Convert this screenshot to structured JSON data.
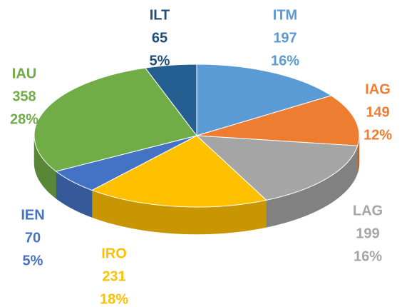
{
  "chart_data": {
    "type": "pie3d",
    "categories": [
      "ITM",
      "IAG",
      "LAG",
      "IRO",
      "IEN",
      "IAU",
      "ILT"
    ],
    "values": [
      197,
      149,
      199,
      231,
      70,
      358,
      65
    ],
    "percent_labels": [
      "16%",
      "12%",
      "16%",
      "18%",
      "5%",
      "28%",
      "5%"
    ],
    "colors": [
      "#5b9bd5",
      "#ed7d31",
      "#a5a5a5",
      "#ffc000",
      "#4472c4",
      "#70ad47",
      "#255e91"
    ]
  }
}
